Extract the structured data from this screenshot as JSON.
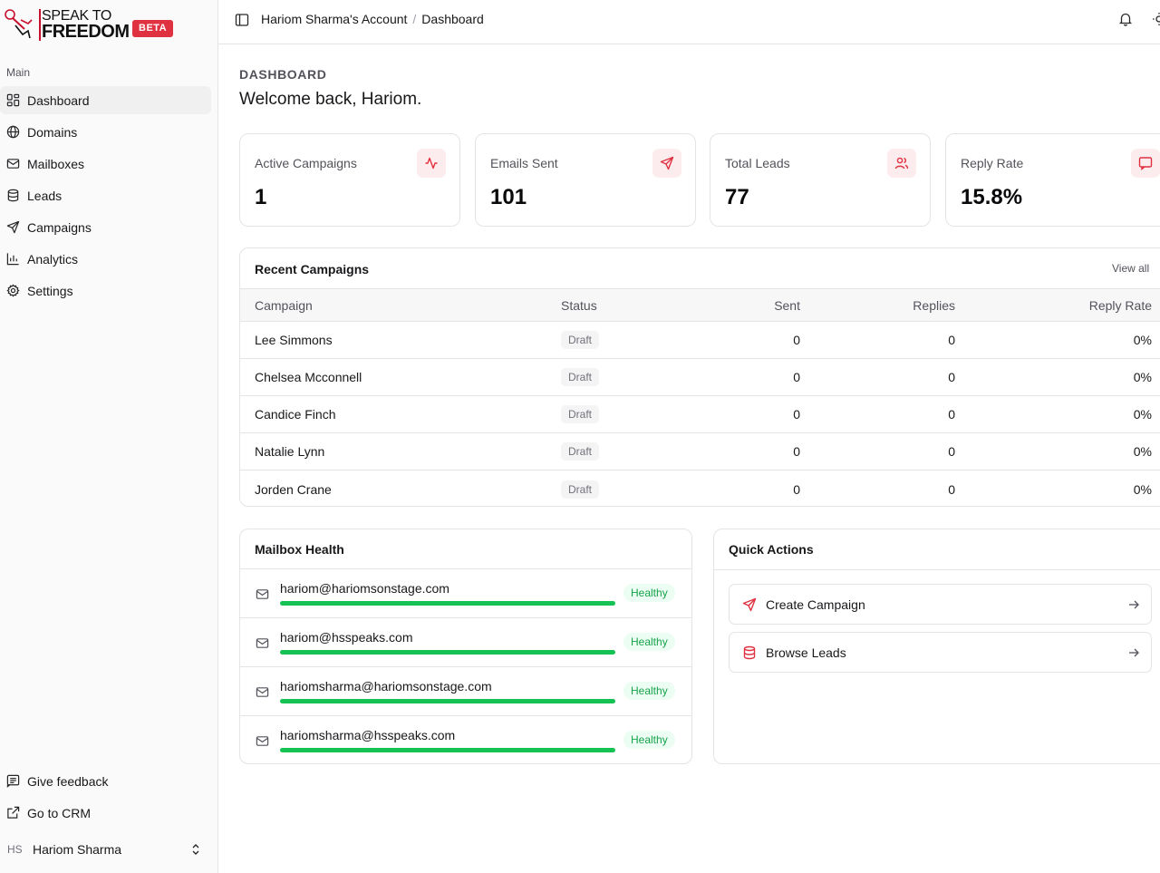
{
  "brand": {
    "logo_line1": "SPEAK TO",
    "logo_line2": "FREEDOM",
    "badge": "BETA",
    "accent": "#e03140"
  },
  "sidebar": {
    "group_label": "Main",
    "items": [
      {
        "label": "Dashboard",
        "icon": "dashboard-icon",
        "active": true
      },
      {
        "label": "Domains",
        "icon": "globe-icon"
      },
      {
        "label": "Mailboxes",
        "icon": "mail-icon"
      },
      {
        "label": "Leads",
        "icon": "database-icon"
      },
      {
        "label": "Campaigns",
        "icon": "send-icon"
      },
      {
        "label": "Analytics",
        "icon": "bar-chart-icon"
      },
      {
        "label": "Settings",
        "icon": "gear-icon"
      }
    ],
    "bottom_items": [
      {
        "label": "Give feedback",
        "icon": "feedback-icon"
      },
      {
        "label": "Go to CRM",
        "icon": "external-link-icon"
      }
    ],
    "user": {
      "initials": "HS",
      "name": "Hariom Sharma"
    }
  },
  "header": {
    "breadcrumb": [
      "Hariom Sharma's Account",
      "Dashboard"
    ],
    "separator": "/"
  },
  "page": {
    "kicker": "Dashboard",
    "welcome": "Welcome back, Hariom."
  },
  "stats": [
    {
      "label": "Active Campaigns",
      "value": "1",
      "icon": "activity-icon"
    },
    {
      "label": "Emails Sent",
      "value": "101",
      "icon": "send-icon"
    },
    {
      "label": "Total Leads",
      "value": "77",
      "icon": "users-icon"
    },
    {
      "label": "Reply Rate",
      "value": "15.8%",
      "icon": "message-icon"
    }
  ],
  "recent_campaigns": {
    "title": "Recent Campaigns",
    "view_all": "View all",
    "columns": [
      "Campaign",
      "Status",
      "Sent",
      "Replies",
      "Reply Rate"
    ],
    "rows": [
      {
        "name": "Lee Simmons",
        "status": "Draft",
        "sent": "0",
        "replies": "0",
        "rate": "0%"
      },
      {
        "name": "Chelsea Mcconnell",
        "status": "Draft",
        "sent": "0",
        "replies": "0",
        "rate": "0%"
      },
      {
        "name": "Candice Finch",
        "status": "Draft",
        "sent": "0",
        "replies": "0",
        "rate": "0%"
      },
      {
        "name": "Natalie Lynn",
        "status": "Draft",
        "sent": "0",
        "replies": "0",
        "rate": "0%"
      },
      {
        "name": "Jorden Crane",
        "status": "Draft",
        "sent": "0",
        "replies": "0",
        "rate": "0%"
      }
    ]
  },
  "mailbox_health": {
    "title": "Mailbox Health",
    "items": [
      {
        "email": "hariom@hariomsonstage.com",
        "status": "Healthy",
        "health": 1.0
      },
      {
        "email": "hariom@hsspeaks.com",
        "status": "Healthy",
        "health": 1.0
      },
      {
        "email": "hariomsharma@hariomsonstage.com",
        "status": "Healthy",
        "health": 1.0
      },
      {
        "email": "hariomsharma@hsspeaks.com",
        "status": "Healthy",
        "health": 1.0
      }
    ]
  },
  "quick_actions": {
    "title": "Quick Actions",
    "items": [
      {
        "label": "Create Campaign",
        "icon": "send-icon"
      },
      {
        "label": "Browse Leads",
        "icon": "database-icon"
      }
    ]
  }
}
